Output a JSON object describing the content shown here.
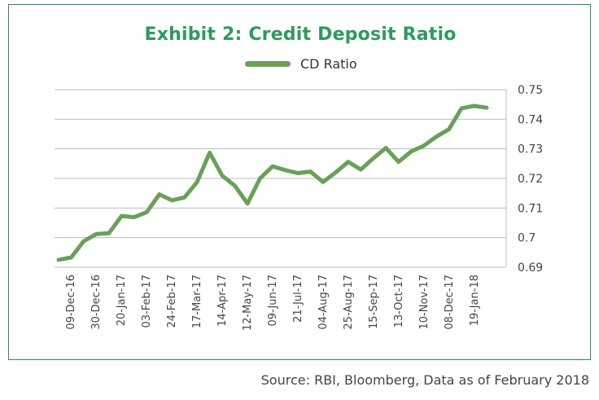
{
  "chart_data": {
    "type": "line",
    "title": "Exhibit 2: Credit Deposit Ratio",
    "series": [
      {
        "name": "CD Ratio",
        "color": "#6aa05a",
        "values": [
          0.6925,
          0.6933,
          0.6988,
          0.7012,
          0.7015,
          0.7073,
          0.7069,
          0.7086,
          0.7146,
          0.7126,
          0.7136,
          0.7188,
          0.7287,
          0.7209,
          0.7175,
          0.7115,
          0.72,
          0.7241,
          0.7228,
          0.7218,
          0.7223,
          0.7188,
          0.722,
          0.7256,
          0.723,
          0.7268,
          0.7303,
          0.7256,
          0.7291,
          0.731,
          0.7341,
          0.7366,
          0.7437,
          0.7445,
          0.7439
        ]
      }
    ],
    "x_tick_labels": [
      "09-Dec-16",
      "30-Dec-16",
      "20-Jan-17",
      "03-Feb-17",
      "24-Feb-17",
      "17-Mar-17",
      "14-Apr-17",
      "12-May-17",
      "09-Jun-17",
      "21-Jul-17",
      "04-Aug-17",
      "25-Aug-17",
      "15-Sep-17",
      "13-Oct-17",
      "10-Nov-17",
      "08-Dec-17",
      "19-Jan-18"
    ],
    "y_ticks": [
      0.69,
      0.7,
      0.71,
      0.72,
      0.73,
      0.74,
      0.75
    ],
    "y_tick_labels": [
      "0.69",
      "0.7",
      "0.71",
      "0.72",
      "0.73",
      "0.74",
      "0.75"
    ],
    "ylim": [
      0.69,
      0.75
    ],
    "y_axis_side": "right",
    "grid": "horizontal",
    "legend_position": "top-center"
  },
  "source": "Source: RBI, Bloomberg, Data as of February 2018",
  "colors": {
    "title": "#2e9a5c",
    "border": "#2e8b57",
    "line": "#6aa05a",
    "grid": "#bdbdbd"
  }
}
